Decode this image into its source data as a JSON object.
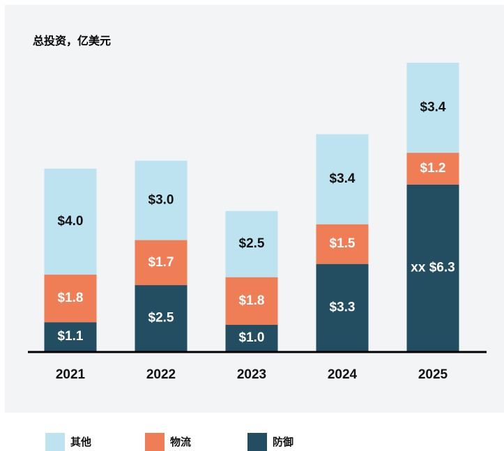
{
  "chart_data": {
    "type": "stacked_bar",
    "title": "总投资，亿美元",
    "categories": [
      "2021",
      "2022",
      "2023",
      "2024",
      "2025"
    ],
    "series": [
      {
        "name": "其他",
        "color": "#bde3f0",
        "values": [
          4.0,
          3.0,
          2.5,
          3.4,
          3.4
        ],
        "value_labels": [
          "$4.0",
          "$3.0",
          "$2.5",
          "$3.4",
          "$3.4"
        ]
      },
      {
        "name": "物流",
        "color": "#ef7e57",
        "values": [
          1.8,
          1.7,
          1.8,
          1.5,
          1.2
        ],
        "value_labels": [
          "$1.8",
          "$1.7",
          "$1.8",
          "$1.5",
          "$1.2"
        ]
      },
      {
        "name": "防御",
        "color": "#234e62",
        "values": [
          1.1,
          2.5,
          1.0,
          3.3,
          6.3
        ],
        "value_labels": [
          "$1.1",
          "$2.5",
          "$1.0",
          "$3.3",
          "xx $6.3"
        ]
      }
    ]
  }
}
